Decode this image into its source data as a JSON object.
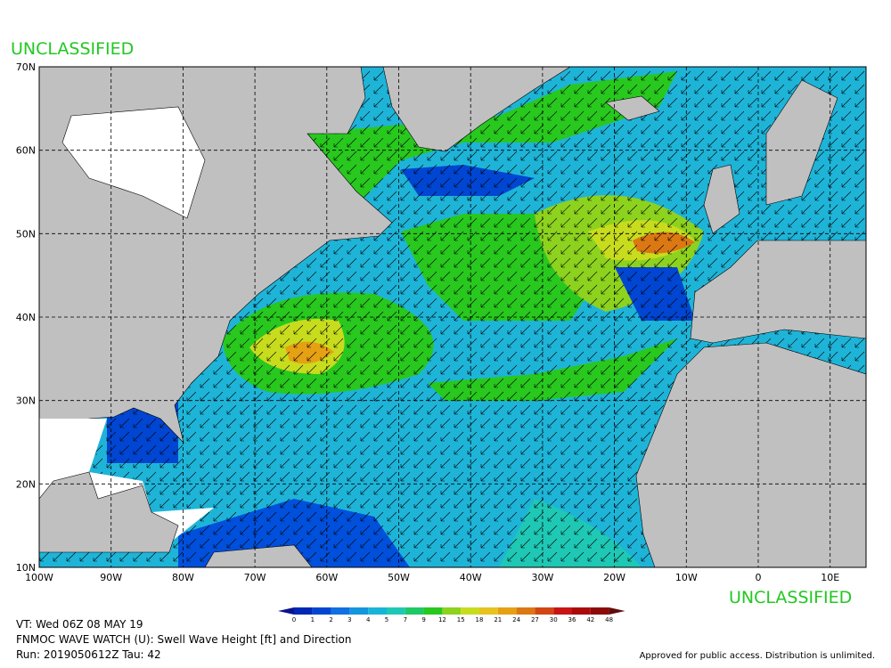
{
  "header": {
    "classification_top": "UNCLASSIFIED",
    "classification_bottom": "UNCLASSIFIED"
  },
  "map": {
    "lat_labels": [
      "70N",
      "60N",
      "50N",
      "40N",
      "30N",
      "20N",
      "10N"
    ],
    "lon_labels": [
      "100W",
      "90W",
      "80W",
      "70W",
      "60W",
      "50W",
      "40W",
      "30W",
      "20W",
      "10W",
      "0",
      "10E"
    ]
  },
  "colorbar": {
    "levels": [
      0,
      1,
      2,
      3,
      4,
      5,
      7,
      9,
      12,
      15,
      18,
      21,
      24,
      27,
      30,
      36,
      42,
      48
    ],
    "colors": [
      "#0a148c",
      "#0028b4",
      "#0046d2",
      "#1070e0",
      "#1496dc",
      "#18b4d8",
      "#1ec8b4",
      "#1ec864",
      "#28c81e",
      "#8cd21e",
      "#c8dc1e",
      "#e6c31e",
      "#e6a014",
      "#dc7814",
      "#d24614",
      "#c81414",
      "#aa0a0a",
      "#8c0a0a",
      "#640a0a"
    ]
  },
  "footer": {
    "valid_time": "VT: Wed 06Z 08 MAY 19",
    "product": "FNMOC WAVE WATCH (U): Swell Wave Height [ft] and Direction",
    "run": "Run: 2019050612Z Tau: 42",
    "disclaimer": "Approved for public access. Distribution is unlimited."
  }
}
